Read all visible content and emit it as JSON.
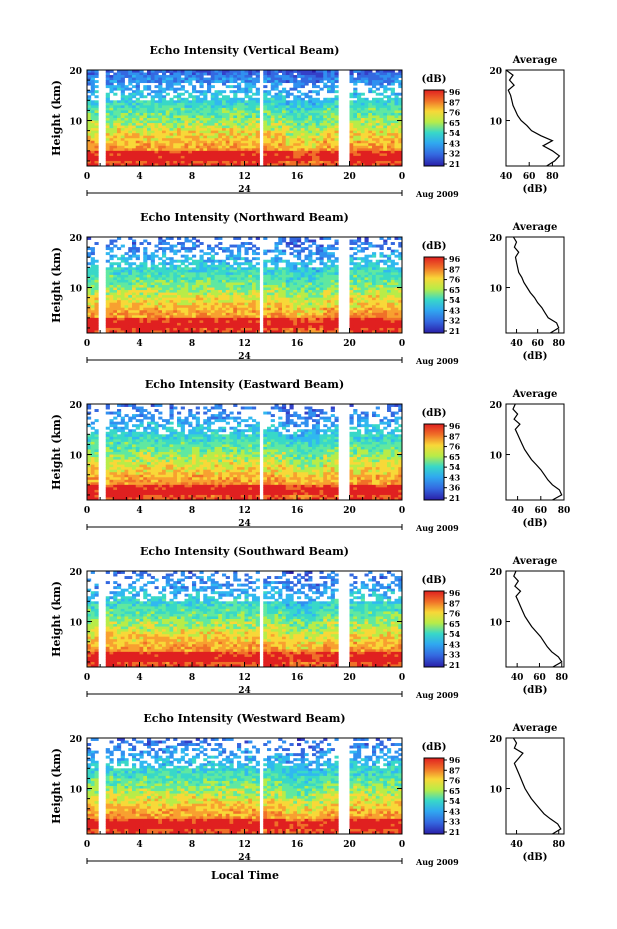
{
  "figure": {
    "bottom_xlabel": "Local Time"
  },
  "chart_data": [
    {
      "type": "heatmap",
      "title": "Echo Intensity (Vertical Beam)",
      "ylabel": "Height (km)",
      "ylim": [
        1,
        20
      ],
      "yticks": [
        "20",
        "10"
      ],
      "xlim": [
        0,
        24
      ],
      "xticks": [
        "0",
        "4",
        "8",
        "12",
        "16",
        "20",
        "0"
      ],
      "date_label": "24",
      "month_label": "Aug 2009",
      "colorbar": {
        "label": "(dB)",
        "ticks": [
          "96",
          "87",
          "76",
          "65",
          "54",
          "43",
          "32",
          "21"
        ]
      },
      "profile": {
        "title": "Average",
        "xlabel": "(dB)",
        "xticks": [
          "40",
          "60",
          "80"
        ],
        "xlim": [
          40,
          90
        ],
        "yticks": [
          "20",
          "10"
        ],
        "height_km": [
          1,
          2,
          3,
          4,
          5,
          6,
          7,
          8,
          9,
          10,
          11,
          12,
          13,
          14,
          15,
          16,
          17,
          18,
          19,
          20
        ],
        "db": [
          75,
          82,
          86,
          80,
          72,
          80,
          70,
          62,
          58,
          53,
          50,
          48,
          46,
          45,
          44,
          42,
          47,
          43,
          46,
          40
        ]
      }
    },
    {
      "type": "heatmap",
      "title": "Echo Intensity (Northward Beam)",
      "ylabel": "Height (km)",
      "ylim": [
        1,
        20
      ],
      "yticks": [
        "20",
        "10"
      ],
      "xlim": [
        0,
        24
      ],
      "xticks": [
        "0",
        "4",
        "8",
        "12",
        "16",
        "20",
        "0"
      ],
      "date_label": "24",
      "month_label": "Aug 2009",
      "colorbar": {
        "label": "(dB)",
        "ticks": [
          "96",
          "87",
          "76",
          "65",
          "54",
          "43",
          "32",
          "21"
        ]
      },
      "profile": {
        "title": "Average",
        "xlabel": "(dB)",
        "xticks": [
          "40",
          "60",
          "80"
        ],
        "xlim": [
          30,
          85
        ],
        "yticks": [
          "20",
          "10"
        ],
        "height_km": [
          1,
          2,
          3,
          4,
          5,
          6,
          7,
          8,
          9,
          10,
          11,
          12,
          13,
          14,
          15,
          16,
          17,
          18,
          19,
          20
        ],
        "db": [
          72,
          80,
          78,
          70,
          67,
          64,
          60,
          57,
          53,
          50,
          47,
          45,
          42,
          41,
          40,
          39,
          42,
          38,
          40,
          37
        ]
      }
    },
    {
      "type": "heatmap",
      "title": "Echo Intensity (Eastward Beam)",
      "ylabel": "Height (km)",
      "ylim": [
        1,
        20
      ],
      "yticks": [
        "20",
        "10"
      ],
      "xlim": [
        0,
        24
      ],
      "xticks": [
        "0",
        "4",
        "8",
        "12",
        "16",
        "20",
        "0"
      ],
      "date_label": "24",
      "month_label": "Aug 2009",
      "colorbar": {
        "label": "(dB)",
        "ticks": [
          "96",
          "87",
          "76",
          "65",
          "54",
          "43",
          "36",
          "21"
        ]
      },
      "profile": {
        "title": "Average",
        "xlabel": "(dB)",
        "xticks": [
          "40",
          "60",
          "80"
        ],
        "xlim": [
          30,
          80
        ],
        "yticks": [
          "20",
          "10"
        ],
        "height_km": [
          1,
          2,
          3,
          4,
          5,
          6,
          7,
          8,
          9,
          10,
          11,
          12,
          13,
          14,
          15,
          16,
          17,
          18,
          19,
          20
        ],
        "db": [
          70,
          78,
          76,
          70,
          66,
          63,
          60,
          56,
          52,
          49,
          46,
          44,
          42,
          40,
          38,
          42,
          37,
          40,
          36,
          38
        ]
      }
    },
    {
      "type": "heatmap",
      "title": "Echo Intensity (Southward Beam)",
      "ylabel": "Height (km)",
      "ylim": [
        1,
        20
      ],
      "yticks": [
        "20",
        "10"
      ],
      "xlim": [
        0,
        24
      ],
      "xticks": [
        "0",
        "4",
        "8",
        "12",
        "16",
        "20",
        "0"
      ],
      "date_label": "24",
      "month_label": "Aug 2009",
      "colorbar": {
        "label": "(dB)",
        "ticks": [
          "96",
          "87",
          "76",
          "65",
          "54",
          "43",
          "33",
          "21"
        ]
      },
      "profile": {
        "title": "Average",
        "xlabel": "(dB)",
        "xticks": [
          "40",
          "60",
          "80"
        ],
        "xlim": [
          30,
          82
        ],
        "yticks": [
          "20",
          "10"
        ],
        "height_km": [
          1,
          2,
          3,
          4,
          5,
          6,
          7,
          8,
          9,
          10,
          11,
          12,
          13,
          14,
          15,
          16,
          17,
          18,
          19,
          20
        ],
        "db": [
          72,
          80,
          77,
          71,
          67,
          64,
          61,
          57,
          53,
          50,
          47,
          45,
          43,
          41,
          39,
          43,
          38,
          41,
          37,
          39
        ]
      }
    },
    {
      "type": "heatmap",
      "title": "Echo Intensity (Westward Beam)",
      "ylabel": "Height (km)",
      "ylim": [
        1,
        20
      ],
      "yticks": [
        "20",
        "10"
      ],
      "xlim": [
        0,
        24
      ],
      "xticks": [
        "0",
        "4",
        "8",
        "12",
        "16",
        "20",
        "0"
      ],
      "date_label": "24",
      "month_label": "Aug 2009",
      "colorbar": {
        "label": "(dB)",
        "ticks": [
          "96",
          "87",
          "76",
          "65",
          "54",
          "43",
          "33",
          "21"
        ]
      },
      "profile": {
        "title": "Average",
        "xlabel": "(dB)",
        "xticks": [
          "40",
          "80"
        ],
        "xlim": [
          30,
          85
        ],
        "yticks": [
          "20",
          "10"
        ],
        "height_km": [
          1,
          2,
          3,
          4,
          5,
          6,
          7,
          8,
          9,
          10,
          11,
          12,
          13,
          14,
          15,
          16,
          17,
          18,
          19,
          20
        ],
        "db": [
          74,
          82,
          79,
          72,
          66,
          62,
          58,
          54,
          51,
          48,
          46,
          44,
          42,
          40,
          38,
          42,
          46,
          38,
          40,
          37
        ]
      }
    }
  ]
}
